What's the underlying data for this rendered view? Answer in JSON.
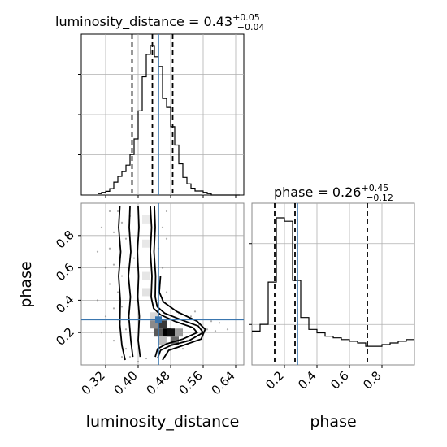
{
  "chart_data": {
    "type": "corner",
    "parameters": [
      "luminosity_distance",
      "phase"
    ],
    "titles": [
      {
        "param": "luminosity_distance",
        "prefix": "luminosity_distance = 0.43",
        "upper": "+0.05",
        "lower": "−0.04"
      },
      {
        "param": "phase",
        "prefix": "phase = 0.26",
        "upper": "+0.45",
        "lower": "−0.12"
      }
    ],
    "axis_labels": {
      "x1": "luminosity_distance",
      "x2": "phase",
      "y": "phase"
    },
    "xlim_distance": [
      0.26,
      0.66
    ],
    "xlim_phase": [
      0.0,
      1.0
    ],
    "ylim_phase": [
      0.0,
      1.0
    ],
    "ticks_distance": [
      "0.32",
      "0.40",
      "0.48",
      "0.56",
      "0.64"
    ],
    "ticks_distance_values": [
      0.32,
      0.4,
      0.48,
      0.56,
      0.64
    ],
    "ticks_phase": [
      "0.2",
      "0.4",
      "0.6",
      "0.8"
    ],
    "ticks_phase_values": [
      0.2,
      0.4,
      0.6,
      0.8
    ],
    "grid": true,
    "truth": {
      "luminosity_distance": 0.45,
      "phase": 0.28,
      "color": "#3a76af"
    },
    "quantiles": {
      "luminosity_distance": [
        0.385,
        0.435,
        0.485
      ],
      "phase": [
        0.14,
        0.265,
        0.71
      ]
    },
    "hist_distance": {
      "edges": [
        0.3,
        0.31,
        0.32,
        0.33,
        0.34,
        0.35,
        0.36,
        0.37,
        0.38,
        0.39,
        0.4,
        0.41,
        0.42,
        0.43,
        0.44,
        0.45,
        0.46,
        0.47,
        0.48,
        0.49,
        0.5,
        0.51,
        0.52,
        0.53,
        0.54,
        0.55,
        0.56,
        0.57,
        0.58,
        0.59,
        0.6,
        0.61,
        0.62,
        0.63,
        0.64,
        0.65
      ],
      "counts": [
        0.4,
        0.8,
        1.1,
        1.9,
        3.8,
        5.5,
        6.9,
        8.8,
        11.9,
        16.5,
        24.8,
        34.8,
        41.4,
        44.0,
        40.7,
        37.8,
        28.4,
        25.8,
        20.1,
        14.7,
        9.2,
        5.2,
        3.3,
        2.0,
        1.2,
        1.2,
        0.8,
        0.4,
        0.0,
        0.0,
        0.0,
        0.0,
        0.0,
        0.0,
        0.0
      ]
    },
    "hist_phase": {
      "edges": [
        0.0,
        0.05,
        0.1,
        0.15,
        0.2,
        0.25,
        0.3,
        0.35,
        0.4,
        0.45,
        0.5,
        0.55,
        0.6,
        0.65,
        0.7,
        0.75,
        0.8,
        0.85,
        0.9,
        0.95,
        1.0
      ],
      "counts": [
        20,
        24,
        49,
        87,
        85,
        50,
        28,
        21,
        19,
        17,
        16,
        15,
        14,
        13,
        11,
        11,
        12,
        13,
        14,
        15
      ]
    },
    "hist2d_cells": [
      {
        "x": 0.44,
        "y": 0.3,
        "shade": "#d8d8d8"
      },
      {
        "x": 0.44,
        "y": 0.25,
        "shade": "#8a8a8a"
      },
      {
        "x": 0.45,
        "y": 0.2,
        "shade": "#5a5a5a"
      },
      {
        "x": 0.46,
        "y": 0.25,
        "shade": "#3a3a3a"
      },
      {
        "x": 0.47,
        "y": 0.2,
        "shade": "#000000"
      },
      {
        "x": 0.48,
        "y": 0.2,
        "shade": "#111111"
      },
      {
        "x": 0.49,
        "y": 0.15,
        "shade": "#6a6a6a"
      },
      {
        "x": 0.5,
        "y": 0.2,
        "shade": "#9a9a9a"
      },
      {
        "x": 0.46,
        "y": 0.15,
        "shade": "#bdbdbd"
      },
      {
        "x": 0.42,
        "y": 0.45,
        "shade": "#e2e2e2"
      },
      {
        "x": 0.42,
        "y": 0.55,
        "shade": "#e6e6e6"
      },
      {
        "x": 0.42,
        "y": 0.75,
        "shade": "#e8e8e8"
      },
      {
        "x": 0.42,
        "y": 0.9,
        "shade": "#eaeaea"
      }
    ],
    "contours": [
      [
        [
          0.355,
          0.98
        ],
        [
          0.352,
          0.85
        ],
        [
          0.357,
          0.7
        ],
        [
          0.352,
          0.55
        ],
        [
          0.356,
          0.4
        ],
        [
          0.355,
          0.25
        ],
        [
          0.36,
          0.12
        ],
        [
          0.368,
          0.03
        ]
      ],
      [
        [
          0.38,
          0.98
        ],
        [
          0.378,
          0.85
        ],
        [
          0.382,
          0.7
        ],
        [
          0.376,
          0.55
        ],
        [
          0.381,
          0.42
        ],
        [
          0.377,
          0.3
        ],
        [
          0.382,
          0.15
        ],
        [
          0.387,
          0.05
        ]
      ],
      [
        [
          0.4,
          0.98
        ],
        [
          0.402,
          0.85
        ],
        [
          0.398,
          0.7
        ],
        [
          0.401,
          0.55
        ],
        [
          0.399,
          0.42
        ],
        [
          0.403,
          0.3
        ],
        [
          0.4,
          0.15
        ],
        [
          0.405,
          0.05
        ]
      ],
      [
        [
          0.43,
          0.98
        ],
        [
          0.433,
          0.85
        ],
        [
          0.43,
          0.7
        ],
        [
          0.434,
          0.55
        ],
        [
          0.432,
          0.42
        ],
        [
          0.438,
          0.35
        ],
        [
          0.455,
          0.31
        ],
        [
          0.49,
          0.27
        ],
        [
          0.535,
          0.23
        ],
        [
          0.545,
          0.2
        ],
        [
          0.51,
          0.16
        ],
        [
          0.47,
          0.13
        ],
        [
          0.448,
          0.1
        ],
        [
          0.442,
          0.05
        ]
      ],
      [
        [
          0.44,
          0.98
        ],
        [
          0.442,
          0.85
        ],
        [
          0.439,
          0.7
        ],
        [
          0.443,
          0.55
        ],
        [
          0.442,
          0.42
        ],
        [
          0.447,
          0.36
        ],
        [
          0.465,
          0.32
        ],
        [
          0.505,
          0.28
        ],
        [
          0.548,
          0.24
        ],
        [
          0.56,
          0.2
        ],
        [
          0.525,
          0.15
        ],
        [
          0.48,
          0.12
        ],
        [
          0.455,
          0.09
        ],
        [
          0.448,
          0.04
        ]
      ],
      [
        [
          0.455,
          0.55
        ],
        [
          0.452,
          0.45
        ],
        [
          0.462,
          0.39
        ],
        [
          0.495,
          0.33
        ],
        [
          0.545,
          0.27
        ],
        [
          0.565,
          0.22
        ],
        [
          0.555,
          0.16
        ],
        [
          0.51,
          0.12
        ],
        [
          0.475,
          0.09
        ],
        [
          0.46,
          0.03
        ]
      ]
    ],
    "scatter": [
      [
        0.31,
        0.85
      ],
      [
        0.33,
        0.72
      ],
      [
        0.34,
        0.62
      ],
      [
        0.36,
        0.88
      ],
      [
        0.35,
        0.45
      ],
      [
        0.32,
        0.3
      ],
      [
        0.37,
        0.22
      ],
      [
        0.34,
        0.15
      ],
      [
        0.36,
        0.55
      ],
      [
        0.33,
        0.5
      ],
      [
        0.38,
        0.92
      ],
      [
        0.37,
        0.78
      ],
      [
        0.36,
        0.36
      ],
      [
        0.35,
        0.28
      ],
      [
        0.37,
        0.1
      ],
      [
        0.39,
        0.66
      ],
      [
        0.36,
        0.05
      ],
      [
        0.34,
        0.82
      ],
      [
        0.32,
        0.6
      ],
      [
        0.35,
        0.95
      ],
      [
        0.5,
        0.32
      ],
      [
        0.53,
        0.3
      ],
      [
        0.55,
        0.25
      ],
      [
        0.57,
        0.22
      ],
      [
        0.52,
        0.15
      ],
      [
        0.56,
        0.18
      ],
      [
        0.58,
        0.27
      ],
      [
        0.54,
        0.33
      ],
      [
        0.51,
        0.1
      ],
      [
        0.59,
        0.21
      ],
      [
        0.47,
        0.45
      ],
      [
        0.46,
        0.6
      ],
      [
        0.45,
        0.72
      ],
      [
        0.46,
        0.85
      ],
      [
        0.47,
        0.95
      ],
      [
        0.46,
        0.4
      ],
      [
        0.48,
        0.36
      ],
      [
        0.44,
        0.65
      ],
      [
        0.45,
        0.5
      ],
      [
        0.47,
        0.78
      ],
      [
        0.3,
        0.4
      ],
      [
        0.31,
        0.2
      ],
      [
        0.3,
        0.7
      ],
      [
        0.33,
        0.95
      ],
      [
        0.34,
        0.35
      ],
      [
        0.38,
        0.05
      ],
      [
        0.4,
        0.02
      ],
      [
        0.42,
        0.04
      ],
      [
        0.62,
        0.22
      ],
      [
        0.6,
        0.26
      ]
    ]
  }
}
